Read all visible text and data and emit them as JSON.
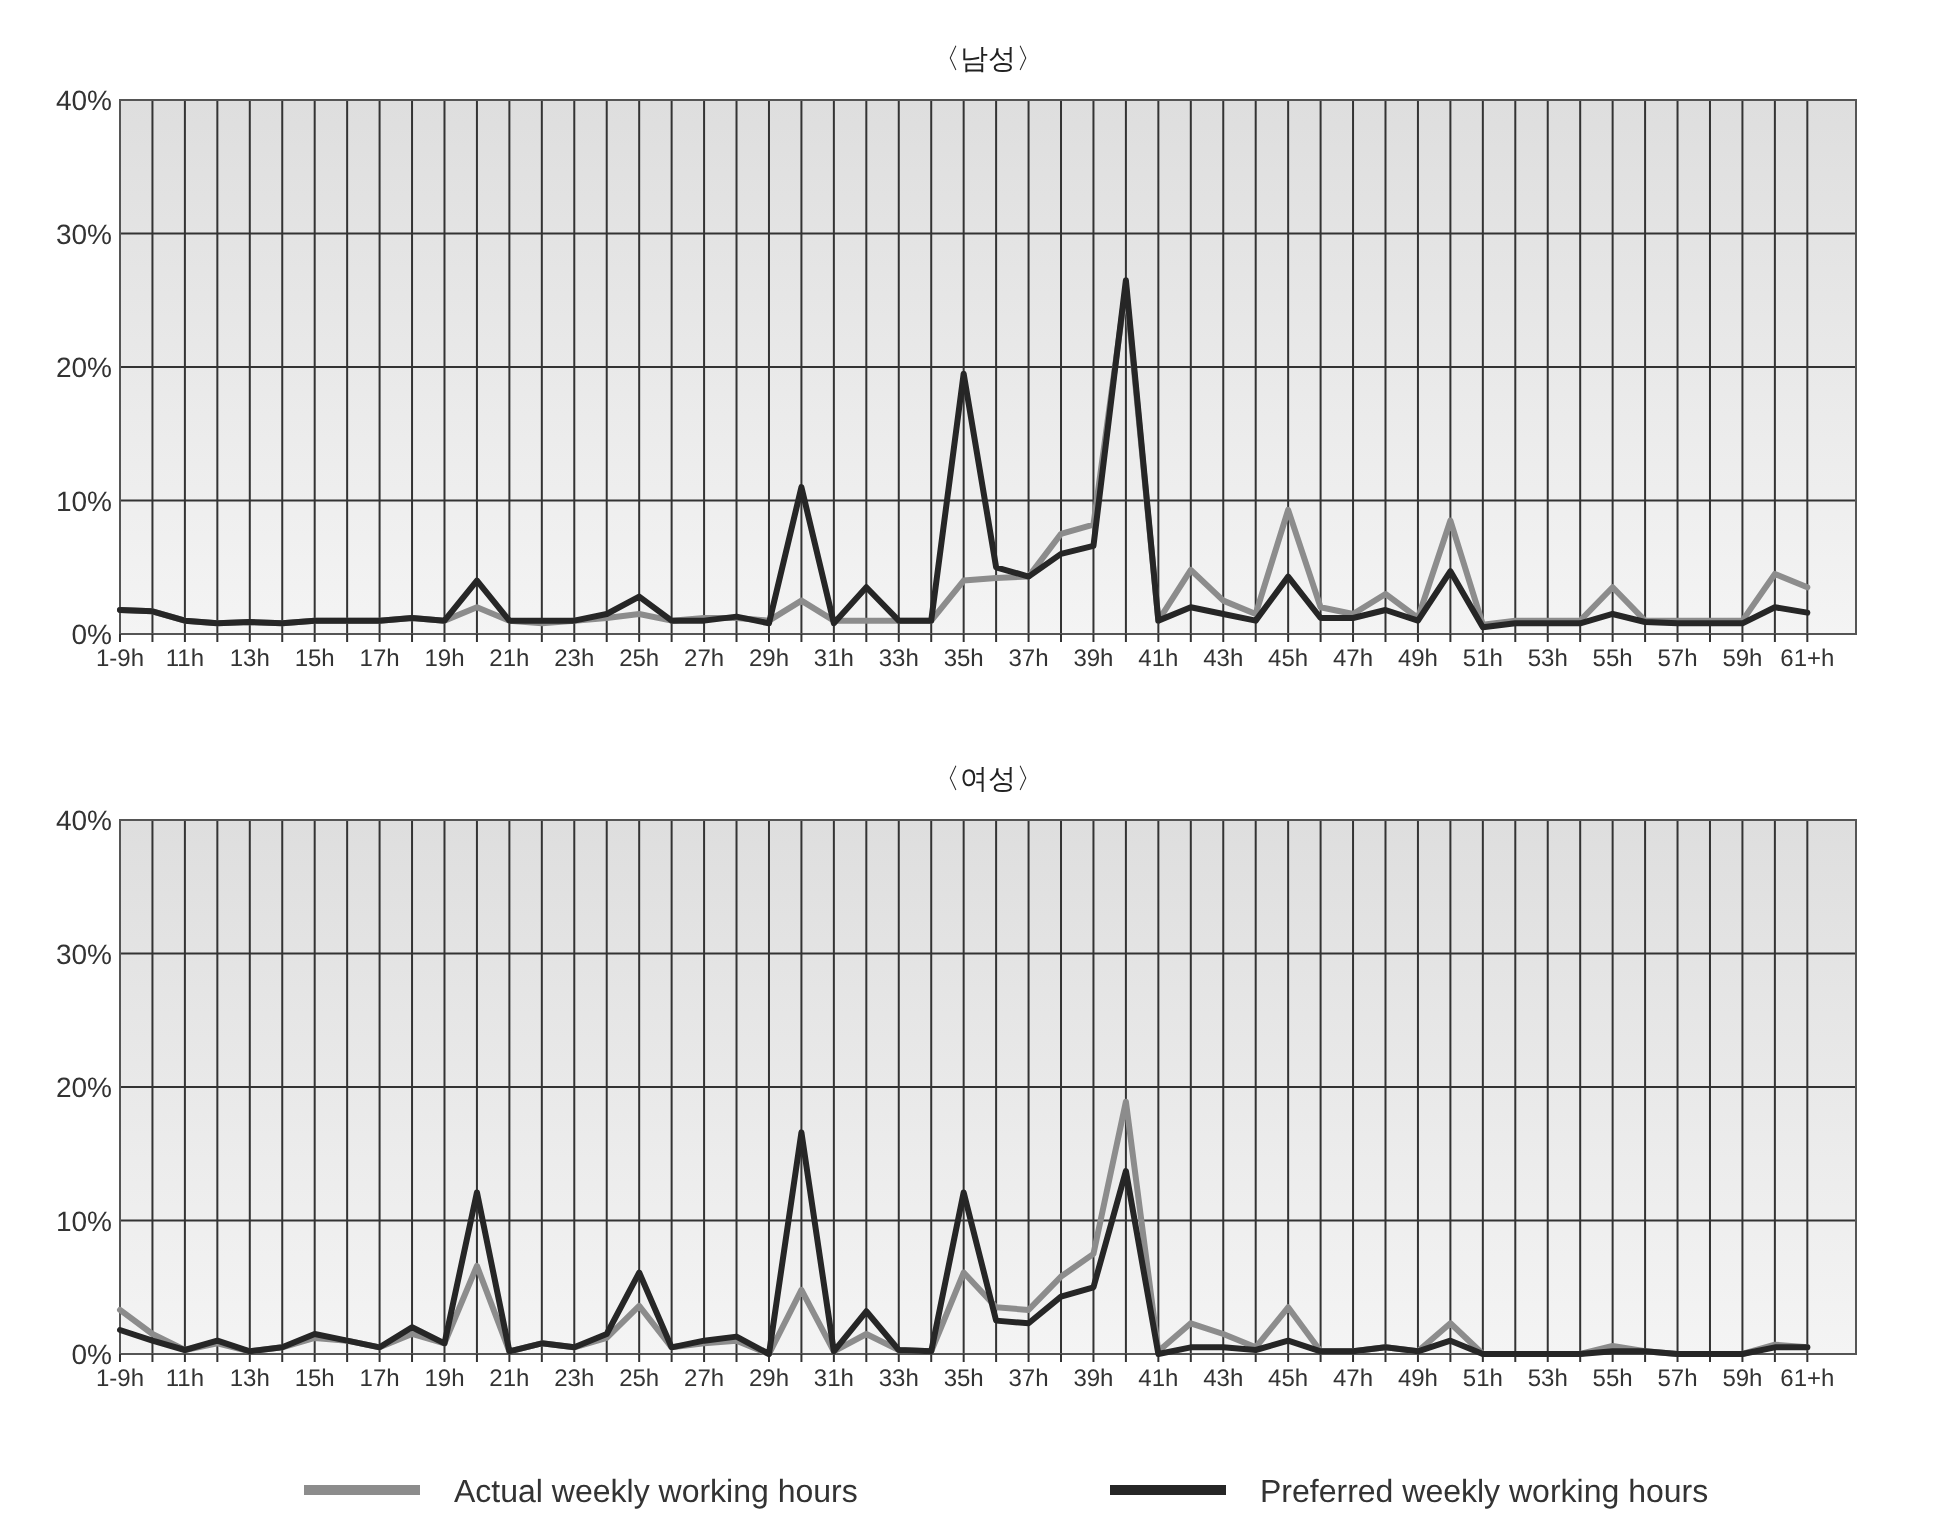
{
  "chart_data": [
    {
      "type": "line",
      "title": "〈남성〉",
      "categories": [
        "1-9h",
        null,
        "11h",
        null,
        "13h",
        null,
        "15h",
        null,
        "17h",
        null,
        "19h",
        null,
        "21h",
        null,
        "23h",
        null,
        "25h",
        null,
        "27h",
        null,
        "29h",
        null,
        "31h",
        null,
        "33h",
        null,
        "35h",
        null,
        "37h",
        null,
        "39h",
        null,
        "41h",
        null,
        "43h",
        null,
        "45h",
        null,
        "47h",
        null,
        "49h",
        null,
        "51h",
        null,
        "53h",
        null,
        "55h",
        null,
        "57h",
        null,
        "59h",
        null,
        "61+h"
      ],
      "series": [
        {
          "color": "#8c8c8c",
          "values": [
            1.8,
            1.7,
            1.0,
            0.8,
            0.9,
            0.8,
            1.0,
            1.0,
            1.0,
            1.2,
            1.0,
            2.0,
            1.0,
            0.8,
            1.0,
            1.2,
            1.5,
            1.0,
            1.2,
            1.2,
            1.0,
            2.5,
            1.0,
            1.0,
            1.0,
            1.0,
            4.0,
            4.2,
            4.3,
            7.5,
            8.2,
            26,
            1.0,
            4.8,
            2.5,
            1.5,
            9.3,
            2.0,
            1.5,
            3.0,
            1.2,
            8.5,
            0.7,
            1.0,
            1.0,
            1.0,
            3.5,
            1.0,
            1.0,
            1.0,
            1.0,
            4.5,
            3.5
          ]
        },
        {
          "color": "#262626",
          "values": [
            1.8,
            1.7,
            1.0,
            0.8,
            0.9,
            0.8,
            1.0,
            1.0,
            1.0,
            1.2,
            1.0,
            4.0,
            1.0,
            1.0,
            1.0,
            1.5,
            2.8,
            1.0,
            1.0,
            1.3,
            0.8,
            11,
            0.8,
            3.5,
            1.0,
            1.0,
            19.5,
            5,
            4.3,
            6.0,
            6.6,
            26.5,
            1.0,
            2.0,
            1.5,
            1.0,
            4.3,
            1.2,
            1.2,
            1.8,
            1.0,
            4.7,
            0.5,
            0.8,
            0.8,
            0.8,
            1.5,
            0.9,
            0.8,
            0.8,
            0.8,
            2.0,
            1.6
          ]
        }
      ],
      "ylim": [
        0,
        40
      ],
      "yticks": [
        {
          "value": 0,
          "label": "0%"
        },
        {
          "value": 10,
          "label": "10%"
        },
        {
          "value": 20,
          "label": "20%"
        },
        {
          "value": 30,
          "label": "30%"
        },
        {
          "value": 40,
          "label": "40%"
        }
      ],
      "grid": true
    },
    {
      "type": "line",
      "title": "〈여성〉",
      "categories": [
        "1-9h",
        null,
        "11h",
        null,
        "13h",
        null,
        "15h",
        null,
        "17h",
        null,
        "19h",
        null,
        "21h",
        null,
        "23h",
        null,
        "25h",
        null,
        "27h",
        null,
        "29h",
        null,
        "31h",
        null,
        "33h",
        null,
        "35h",
        null,
        "37h",
        null,
        "39h",
        null,
        "41h",
        null,
        "43h",
        null,
        "45h",
        null,
        "47h",
        null,
        "49h",
        null,
        "51h",
        null,
        "53h",
        null,
        "55h",
        null,
        "57h",
        null,
        "59h",
        null,
        "61+h"
      ],
      "series": [
        {
          "name": "Actual weekly working hours",
          "color": "#8c8c8c",
          "values": [
            3.3,
            1.5,
            0.3,
            0.8,
            0.2,
            0.5,
            1.2,
            1.0,
            0.5,
            1.5,
            0.8,
            6.6,
            0.2,
            0.8,
            0.5,
            1.2,
            3.6,
            0.5,
            0.8,
            1.0,
            0,
            4.8,
            0.2,
            1.5,
            0.3,
            0.2,
            6.1,
            3.5,
            3.3,
            5.8,
            7.5,
            18.9,
            0.2,
            2.3,
            1.5,
            0.5,
            3.5,
            0.2,
            0.2,
            0.5,
            0.2,
            2.3,
            0,
            0,
            0,
            0,
            0.6,
            0.2,
            0,
            0,
            0,
            0.7,
            0.5
          ]
        },
        {
          "name": "Preferred weekly working hours",
          "color": "#262626",
          "values": [
            1.8,
            1.0,
            0.3,
            1.0,
            0.2,
            0.5,
            1.5,
            1.0,
            0.5,
            2.0,
            0.8,
            12.1,
            0.2,
            0.8,
            0.5,
            1.5,
            6.1,
            0.5,
            1.0,
            1.3,
            0,
            16.6,
            0.2,
            3.2,
            0.3,
            0.2,
            12.1,
            2.5,
            2.3,
            4.3,
            5.0,
            13.7,
            0,
            0.5,
            0.5,
            0.3,
            1.0,
            0.2,
            0.2,
            0.5,
            0.2,
            1.0,
            0,
            0,
            0,
            0,
            0.2,
            0.2,
            0,
            0,
            0,
            0.5,
            0.5
          ]
        }
      ],
      "ylim": [
        0,
        40
      ],
      "yticks": [
        {
          "value": 0,
          "label": "0%"
        },
        {
          "value": 10,
          "label": "10%"
        },
        {
          "value": 20,
          "label": "20%"
        },
        {
          "value": 30,
          "label": "30%"
        },
        {
          "value": 40,
          "label": "40%"
        }
      ],
      "grid": true,
      "legend": "bottom"
    }
  ]
}
